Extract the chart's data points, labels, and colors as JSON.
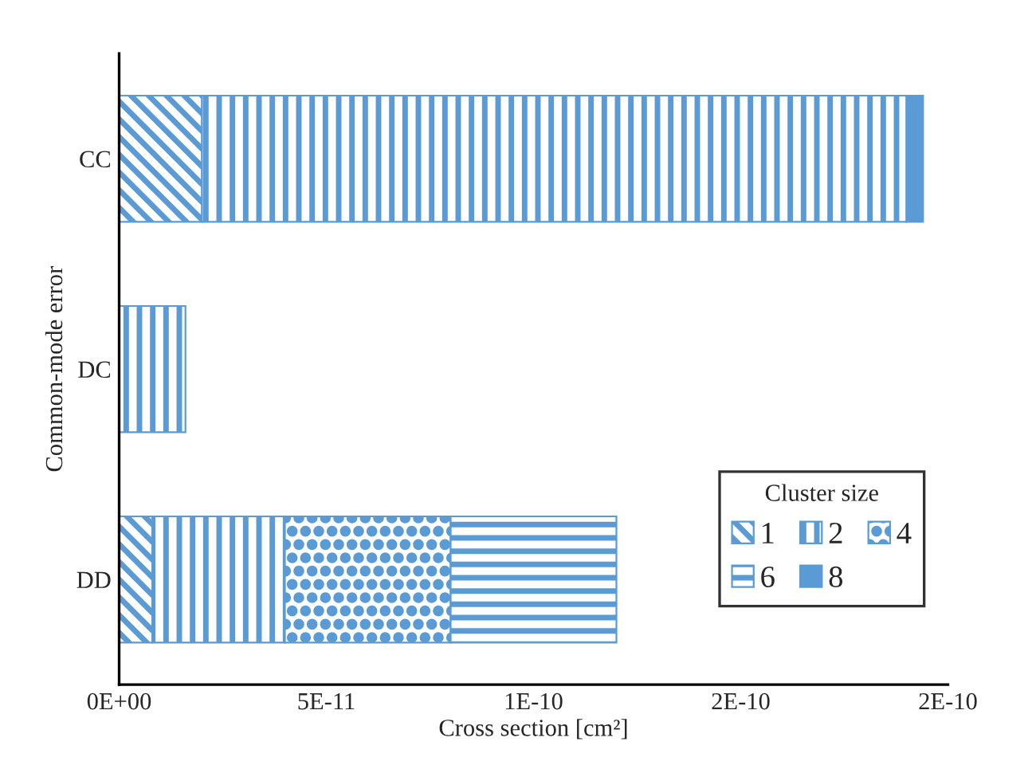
{
  "chart_data": {
    "type": "bar",
    "orientation": "horizontal",
    "stacked": true,
    "xlabel": "Cross section [cm²]",
    "ylabel": "Common-mode error",
    "legend_title": "Cluster size",
    "legend": "bottom right",
    "grid": false,
    "categories": [
      "CC",
      "DC",
      "DD"
    ],
    "series": [
      {
        "name": "1",
        "color": "#5b9bd5",
        "values": [
          2e-11,
          null,
          8e-12
        ]
      },
      {
        "name": "2",
        "color": "#5b9bd5",
        "values": [
          1.7e-10,
          1.6e-11,
          3.2e-11
        ]
      },
      {
        "name": "4",
        "color": "#5b9bd5",
        "values": [
          null,
          null,
          4e-11
        ]
      },
      {
        "name": "6",
        "color": "#5b9bd5",
        "values": [
          null,
          null,
          4e-11
        ]
      },
      {
        "name": "8",
        "color": "#5b9bd5",
        "values": [
          4e-12,
          null,
          null
        ]
      }
    ],
    "xlim": [
      0,
      2e-10
    ],
    "xticks": [
      {
        "value": 0,
        "label": "0E+00"
      },
      {
        "value": 5e-11,
        "label": "5E-11"
      },
      {
        "value": 1e-10,
        "label": "1E-10"
      },
      {
        "value": 1.5e-10,
        "label": "2E-10"
      },
      {
        "value": 2e-10,
        "label": "2E-10"
      }
    ]
  }
}
